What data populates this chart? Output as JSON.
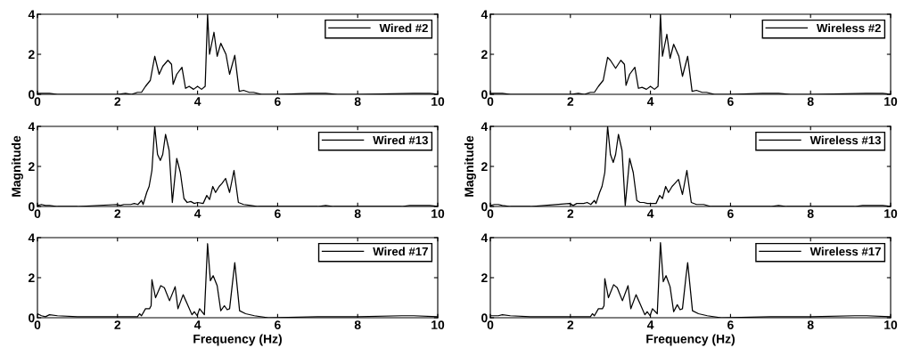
{
  "chart_data": [
    {
      "type": "line",
      "xlim": [
        0,
        10
      ],
      "ylim": [
        0,
        4
      ],
      "xticks": [
        0,
        2,
        4,
        6,
        8,
        10
      ],
      "yticks": [
        0,
        2,
        4
      ],
      "legend": "top right",
      "grid": false,
      "series": [
        {
          "name": "Wired #2",
          "color": "#000000",
          "x": [
            0,
            0.15,
            0.3,
            0.5,
            1,
            2,
            2.2,
            2.35,
            2.5,
            2.6,
            2.7,
            2.82,
            2.93,
            3.04,
            3.13,
            3.26,
            3.35,
            3.39,
            3.48,
            3.61,
            3.7,
            3.79,
            3.9,
            4.0,
            4.1,
            4.19,
            4.25,
            4.3,
            4.41,
            4.49,
            4.58,
            4.71,
            4.8,
            4.93,
            5.04,
            5.15,
            5.29,
            5.4,
            5.6,
            6,
            6.8,
            7.0,
            7.2,
            7.5,
            8,
            9.4,
            9.6,
            9.8,
            10
          ],
          "values": [
            0.05,
            0.05,
            0.05,
            0,
            0,
            0,
            0.05,
            0,
            0.1,
            0.1,
            0.4,
            0.7,
            1.9,
            1.0,
            1.4,
            1.7,
            1.5,
            0.5,
            1.0,
            1.35,
            0.3,
            0.4,
            0.25,
            0.4,
            0.25,
            0.4,
            4.0,
            2.0,
            3.1,
            1.9,
            2.55,
            2.0,
            1.0,
            1.95,
            0.15,
            0.2,
            0.1,
            0.1,
            0,
            0,
            0.05,
            0.05,
            0.05,
            0,
            0,
            0.05,
            0.05,
            0.05,
            0
          ]
        }
      ]
    },
    {
      "type": "line",
      "xlim": [
        0,
        10
      ],
      "ylim": [
        0,
        4
      ],
      "xticks": [
        0,
        2,
        4,
        6,
        8,
        10
      ],
      "yticks": [
        0,
        2,
        4
      ],
      "legend": "top right",
      "grid": false,
      "series": [
        {
          "name": "Wireless #2",
          "color": "#000000",
          "x": [
            0,
            0.15,
            0.3,
            0.5,
            1,
            2,
            2.2,
            2.35,
            2.5,
            2.6,
            2.7,
            2.82,
            2.93,
            3.0,
            3.13,
            3.26,
            3.35,
            3.39,
            3.48,
            3.61,
            3.7,
            3.79,
            3.9,
            4.0,
            4.1,
            4.19,
            4.25,
            4.3,
            4.41,
            4.49,
            4.58,
            4.71,
            4.8,
            4.93,
            5.04,
            5.15,
            5.29,
            5.4,
            5.6,
            6,
            6.8,
            7.0,
            7.2,
            7.5,
            8,
            9.4,
            9.6,
            9.8,
            10
          ],
          "values": [
            0.05,
            0.05,
            0.05,
            0,
            0,
            0,
            0.05,
            0,
            0.1,
            0.1,
            0.4,
            0.7,
            1.85,
            1.7,
            1.3,
            1.7,
            1.5,
            0.45,
            1.0,
            1.35,
            0.3,
            0.35,
            0.25,
            0.4,
            0.25,
            0.4,
            4.0,
            1.9,
            3.0,
            1.8,
            2.5,
            1.9,
            0.9,
            1.9,
            0.15,
            0.2,
            0.1,
            0.1,
            0,
            0,
            0.05,
            0.05,
            0.05,
            0,
            0,
            0.05,
            0.05,
            0.05,
            0
          ]
        }
      ]
    },
    {
      "type": "line",
      "xlim": [
        0,
        10
      ],
      "ylim": [
        0,
        4
      ],
      "xticks": [
        0,
        2,
        4,
        6,
        8,
        10
      ],
      "yticks": [
        0,
        2,
        4
      ],
      "legend": "top right",
      "grid": false,
      "ylabel": "Magnitude",
      "series": [
        {
          "name": "Wired #13",
          "color": "#000000",
          "x": [
            0,
            0.1,
            0.2,
            0.3,
            0.5,
            1,
            1.98,
            2.07,
            2.16,
            2.33,
            2.42,
            2.51,
            2.6,
            2.64,
            2.73,
            2.79,
            2.86,
            2.93,
            3.0,
            3.07,
            3.13,
            3.2,
            3.29,
            3.37,
            3.48,
            3.57,
            3.66,
            3.74,
            3.83,
            3.92,
            4.0,
            4.14,
            4.23,
            4.3,
            4.38,
            4.45,
            4.54,
            4.61,
            4.7,
            4.8,
            4.91,
            5.02,
            5.15,
            5.33,
            5.51,
            7.0,
            7.2,
            7.4,
            8,
            9.1,
            9.3,
            9.8,
            10
          ],
          "values": [
            0.05,
            0.1,
            0.05,
            0.05,
            0,
            0,
            0.1,
            0.05,
            0.1,
            0.1,
            0.15,
            0.1,
            0.3,
            0.1,
            0.7,
            1.0,
            1.8,
            4.0,
            2.6,
            2.3,
            2.6,
            3.6,
            2.8,
            0.2,
            2.4,
            1.7,
            0.4,
            0.2,
            0.25,
            0.15,
            0.2,
            0.15,
            0.55,
            0.35,
            1.0,
            0.7,
            1.0,
            1.15,
            1.4,
            0.7,
            1.8,
            0.2,
            0.1,
            0.05,
            0,
            0,
            0.05,
            0,
            0,
            0,
            0.05,
            0.05,
            0
          ]
        }
      ]
    },
    {
      "type": "line",
      "xlim": [
        0,
        10
      ],
      "ylim": [
        0,
        4
      ],
      "xticks": [
        0,
        2,
        4,
        6,
        8,
        10
      ],
      "yticks": [
        0,
        2,
        4
      ],
      "legend": "top right",
      "grid": false,
      "ylabel": "Magnitude",
      "series": [
        {
          "name": "Wireless #13",
          "color": "#000000",
          "x": [
            0,
            0.1,
            0.2,
            0.3,
            0.5,
            1,
            1.98,
            2.07,
            2.16,
            2.33,
            2.42,
            2.51,
            2.6,
            2.64,
            2.73,
            2.79,
            2.86,
            2.93,
            3.0,
            3.07,
            3.13,
            3.2,
            3.29,
            3.37,
            3.48,
            3.57,
            3.66,
            3.74,
            3.83,
            3.92,
            4.0,
            4.14,
            4.23,
            4.3,
            4.38,
            4.45,
            4.54,
            4.61,
            4.7,
            4.8,
            4.91,
            5.02,
            5.15,
            5.33,
            5.51,
            7.0,
            7.2,
            7.4,
            8,
            9.1,
            9.3,
            9.8,
            10
          ],
          "values": [
            0.05,
            0.1,
            0.1,
            0.05,
            0,
            0,
            0.15,
            0.05,
            0.15,
            0.15,
            0.2,
            0.1,
            0.3,
            0.15,
            0.7,
            1.0,
            1.7,
            4.0,
            2.6,
            2.2,
            2.6,
            3.6,
            2.8,
            0.05,
            2.4,
            1.7,
            0.3,
            0.2,
            0.2,
            0.15,
            0.15,
            0.15,
            0.55,
            0.4,
            1.0,
            0.7,
            1.0,
            1.15,
            1.35,
            0.6,
            1.8,
            0.2,
            0.1,
            0.1,
            0,
            0,
            0.05,
            0,
            0,
            0,
            0.05,
            0.05,
            0
          ]
        }
      ]
    },
    {
      "type": "line",
      "xlim": [
        0,
        10
      ],
      "ylim": [
        0,
        4
      ],
      "xticks": [
        0,
        2,
        4,
        6,
        8,
        10
      ],
      "yticks": [
        0,
        2,
        4
      ],
      "legend": "top right",
      "grid": false,
      "xlabel": "Frequency (Hz)",
      "series": [
        {
          "name": "Wired #17",
          "color": "#000000",
          "x": [
            0,
            0.1,
            0.2,
            0.3,
            0.5,
            1,
            2,
            2.5,
            2.55,
            2.6,
            2.7,
            2.8,
            2.84,
            2.86,
            2.95,
            3.08,
            3.17,
            3.3,
            3.44,
            3.51,
            3.64,
            3.74,
            3.86,
            3.92,
            3.99,
            4.05,
            4.17,
            4.25,
            4.32,
            4.39,
            4.49,
            4.58,
            4.67,
            4.74,
            4.8,
            4.89,
            4.93,
            5.05,
            5.2,
            5.42,
            5.77,
            7,
            8,
            9.1,
            9.4,
            10
          ],
          "values": [
            0.2,
            0.1,
            0.05,
            0.15,
            0.1,
            0.05,
            0.05,
            0.05,
            0.2,
            0.1,
            0.45,
            0.45,
            0.6,
            1.9,
            1.0,
            1.6,
            1.5,
            0.85,
            1.55,
            0.45,
            1.15,
            0.7,
            0.15,
            0.3,
            0.1,
            0.45,
            0.15,
            3.7,
            1.85,
            2.1,
            1.6,
            0.35,
            0.6,
            0.4,
            0.45,
            2.05,
            2.75,
            0.35,
            0.2,
            0.1,
            0,
            0.05,
            0.05,
            0.1,
            0.1,
            0.05
          ]
        }
      ]
    },
    {
      "type": "line",
      "xlim": [
        0,
        10
      ],
      "ylim": [
        0,
        4
      ],
      "xticks": [
        0,
        2,
        4,
        6,
        8,
        10
      ],
      "yticks": [
        0,
        2,
        4
      ],
      "legend": "top right",
      "grid": false,
      "xlabel": "Frequency (Hz)",
      "series": [
        {
          "name": "Wireless #17",
          "color": "#000000",
          "x": [
            0,
            0.1,
            0.2,
            0.3,
            0.5,
            1,
            2,
            2.5,
            2.55,
            2.6,
            2.7,
            2.8,
            2.84,
            2.86,
            2.95,
            3.08,
            3.17,
            3.3,
            3.44,
            3.51,
            3.64,
            3.74,
            3.86,
            3.92,
            3.99,
            4.05,
            4.17,
            4.25,
            4.32,
            4.39,
            4.49,
            4.58,
            4.67,
            4.74,
            4.8,
            4.89,
            4.93,
            5.05,
            5.2,
            5.42,
            5.77,
            7,
            8,
            9.1,
            9.4,
            10
          ],
          "values": [
            0.1,
            0.1,
            0.1,
            0.15,
            0.1,
            0.05,
            0.05,
            0.05,
            0.2,
            0.1,
            0.45,
            0.45,
            0.6,
            1.95,
            1.0,
            1.65,
            1.5,
            0.85,
            1.6,
            0.45,
            1.15,
            0.7,
            0.15,
            0.3,
            0.1,
            0.45,
            0.2,
            3.75,
            1.8,
            2.1,
            1.55,
            0.3,
            0.65,
            0.4,
            0.45,
            2.1,
            2.75,
            0.35,
            0.2,
            0.1,
            0,
            0.05,
            0.05,
            0.1,
            0.1,
            0.05
          ]
        }
      ]
    }
  ]
}
